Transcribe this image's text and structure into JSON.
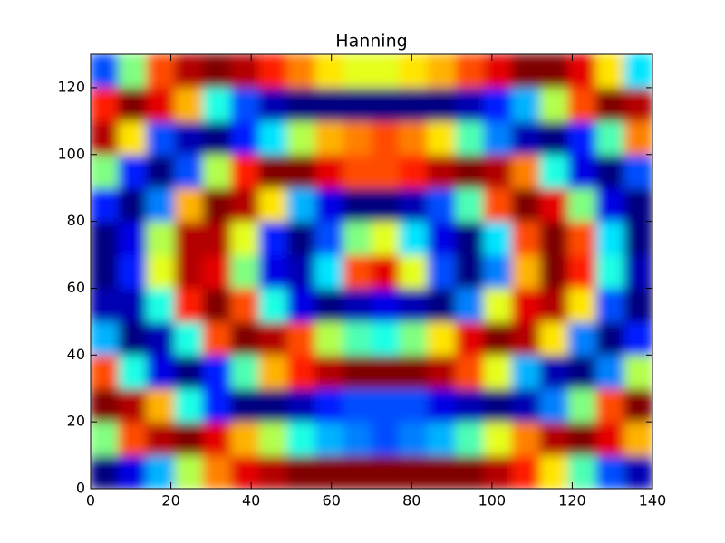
{
  "chart_data": {
    "type": "heatmap",
    "title": "Hanning",
    "colormap": "jet",
    "xlim": [
      0,
      140
    ],
    "ylim": [
      0,
      130
    ],
    "xticks": [
      0,
      20,
      40,
      60,
      80,
      100,
      120,
      140
    ],
    "yticks": [
      0,
      20,
      40,
      60,
      80,
      100,
      120
    ],
    "z": [
      [
        -1.0,
        -0.8,
        -0.4,
        0.1,
        0.5,
        0.8,
        0.9,
        1.0,
        1.0,
        1.0,
        1.0,
        1.0,
        1.0,
        1.0,
        0.9,
        0.7,
        0.3,
        -0.1,
        -0.6,
        -0.9
      ],
      [
        0.0,
        0.6,
        0.9,
        1.0,
        0.8,
        0.4,
        0.1,
        -0.2,
        -0.4,
        -0.5,
        -0.6,
        -0.5,
        -0.4,
        -0.1,
        0.2,
        0.5,
        0.9,
        1.0,
        0.8,
        0.4
      ],
      [
        1.0,
        0.9,
        0.4,
        -0.2,
        -0.7,
        -1.0,
        -1.0,
        -0.9,
        -0.7,
        -0.6,
        -0.6,
        -0.6,
        -0.8,
        -0.9,
        -1.0,
        -0.9,
        -0.5,
        0.0,
        0.6,
        1.0
      ],
      [
        0.6,
        -0.2,
        -0.8,
        -1.0,
        -0.7,
        -0.1,
        0.4,
        0.7,
        0.9,
        1.0,
        1.0,
        1.0,
        0.9,
        0.6,
        0.2,
        -0.4,
        -0.9,
        -1.0,
        -0.5,
        0.1
      ],
      [
        -0.4,
        -1.0,
        -0.9,
        -0.2,
        0.6,
        1.0,
        0.9,
        0.6,
        0.1,
        -0.1,
        -0.2,
        0.0,
        0.3,
        0.8,
        1.0,
        0.9,
        0.3,
        -0.5,
        -1.0,
        -0.7
      ],
      [
        -0.9,
        -0.9,
        -0.2,
        0.7,
        1.0,
        0.6,
        -0.2,
        -0.8,
        -1.0,
        -0.9,
        -0.8,
        -0.9,
        -1.0,
        -0.5,
        0.2,
        0.8,
        0.9,
        0.3,
        -0.6,
        -1.0
      ],
      [
        -1.0,
        -0.7,
        0.2,
        0.9,
        0.8,
        0.0,
        -0.8,
        -0.9,
        -0.3,
        0.6,
        0.8,
        0.2,
        -0.6,
        -1.0,
        -0.5,
        0.4,
        1.0,
        0.7,
        -0.2,
        -0.9
      ],
      [
        -1.0,
        -0.8,
        0.1,
        0.9,
        0.9,
        0.2,
        -0.7,
        -1.0,
        -0.6,
        0.0,
        0.2,
        -0.3,
        -0.8,
        -1.0,
        -0.3,
        0.6,
        1.0,
        0.6,
        -0.3,
        -1.0
      ],
      [
        -0.7,
        -1.0,
        -0.5,
        0.4,
        1.0,
        0.9,
        0.3,
        -0.4,
        -0.8,
        -1.0,
        -1.0,
        -0.9,
        -0.6,
        -0.1,
        0.6,
        1.0,
        0.8,
        0.0,
        -0.8,
        -1.0
      ],
      [
        0.0,
        -0.7,
        -1.0,
        -0.6,
        0.1,
        0.7,
        1.0,
        1.0,
        0.8,
        0.6,
        0.6,
        0.7,
        0.9,
        1.0,
        0.9,
        0.5,
        -0.2,
        -0.8,
        -1.0,
        -0.6
      ],
      [
        0.9,
        0.3,
        -0.6,
        -0.9,
        -1.0,
        -0.7,
        -0.3,
        0.1,
        0.4,
        0.5,
        0.6,
        0.5,
        0.3,
        -0.1,
        -0.5,
        -0.9,
        -1.0,
        -0.7,
        -0.1,
        0.5
      ],
      [
        0.7,
        1.0,
        0.8,
        0.4,
        -0.2,
        -0.6,
        -0.9,
        -1.0,
        -1.0,
        -1.0,
        -1.0,
        -1.0,
        -1.0,
        -0.9,
        -0.7,
        -0.4,
        0.1,
        0.6,
        1.0,
        0.9
      ],
      [
        -0.6,
        0.0,
        0.6,
        0.9,
        1.0,
        0.9,
        0.7,
        0.5,
        0.3,
        0.2,
        0.2,
        0.3,
        0.4,
        0.6,
        0.8,
        1.0,
        1.0,
        0.8,
        0.3,
        -0.3
      ]
    ]
  }
}
